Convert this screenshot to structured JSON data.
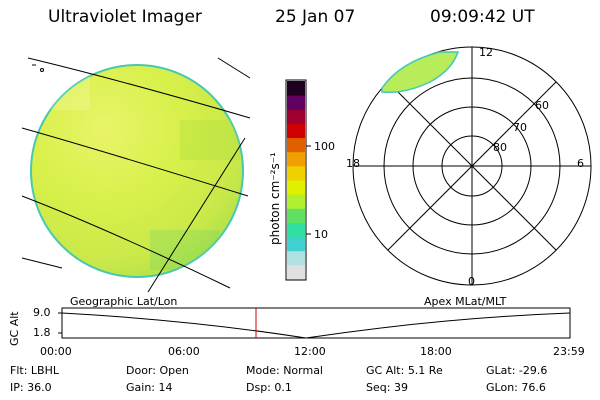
{
  "header": {
    "instrument": "Ultraviolet Imager",
    "date": "25 Jan 07",
    "time": "09:09:42 UT"
  },
  "colorbar": {
    "unit_label": "photon cm⁻²s⁻¹",
    "ticks": [
      "100",
      "10"
    ],
    "colors": [
      "#e0e0e0",
      "#b0e0e0",
      "#40d0d0",
      "#30e0a0",
      "#60e060",
      "#b0f030",
      "#e0f000",
      "#f0d000",
      "#f0a000",
      "#e06000",
      "#d00000",
      "#a00030",
      "#600060",
      "#200020"
    ]
  },
  "geo_panel": {
    "label": "Geographic Lat/Lon",
    "disk_colors": [
      "#c8e84a",
      "#d8f04a",
      "#e8f46a",
      "#a8e048"
    ]
  },
  "polar_panel": {
    "label": "Apex MLat/MLT",
    "mlt_labels": {
      "top": "12",
      "right": "6",
      "bottom": "0",
      "left": "18"
    },
    "lat_labels": [
      "60",
      "70",
      "80"
    ]
  },
  "altitude_plot": {
    "axis_label": "GC Alt",
    "y_ticks": [
      "9.0",
      "1.8"
    ],
    "x_ticks": [
      "00:00",
      "06:00",
      "12:00",
      "18:00",
      "23:59"
    ],
    "marker_color": "#cc0000"
  },
  "info": {
    "row1": [
      {
        "label": "Flt:",
        "value": "LBHL"
      },
      {
        "label": "Door:",
        "value": "Open"
      },
      {
        "label": "Mode:",
        "value": "Normal"
      },
      {
        "label": "GC Alt:",
        "value": "5.1 Re"
      },
      {
        "label": "GLat:",
        "value": "-29.6"
      }
    ],
    "row2": [
      {
        "label": "IP:",
        "value": "36.0"
      },
      {
        "label": "Gain:",
        "value": "14"
      },
      {
        "label": "Dsp:",
        "value": "0.1"
      },
      {
        "label": "Seq:",
        "value": "39"
      },
      {
        "label": "GLon:",
        "value": "76.6"
      }
    ]
  }
}
